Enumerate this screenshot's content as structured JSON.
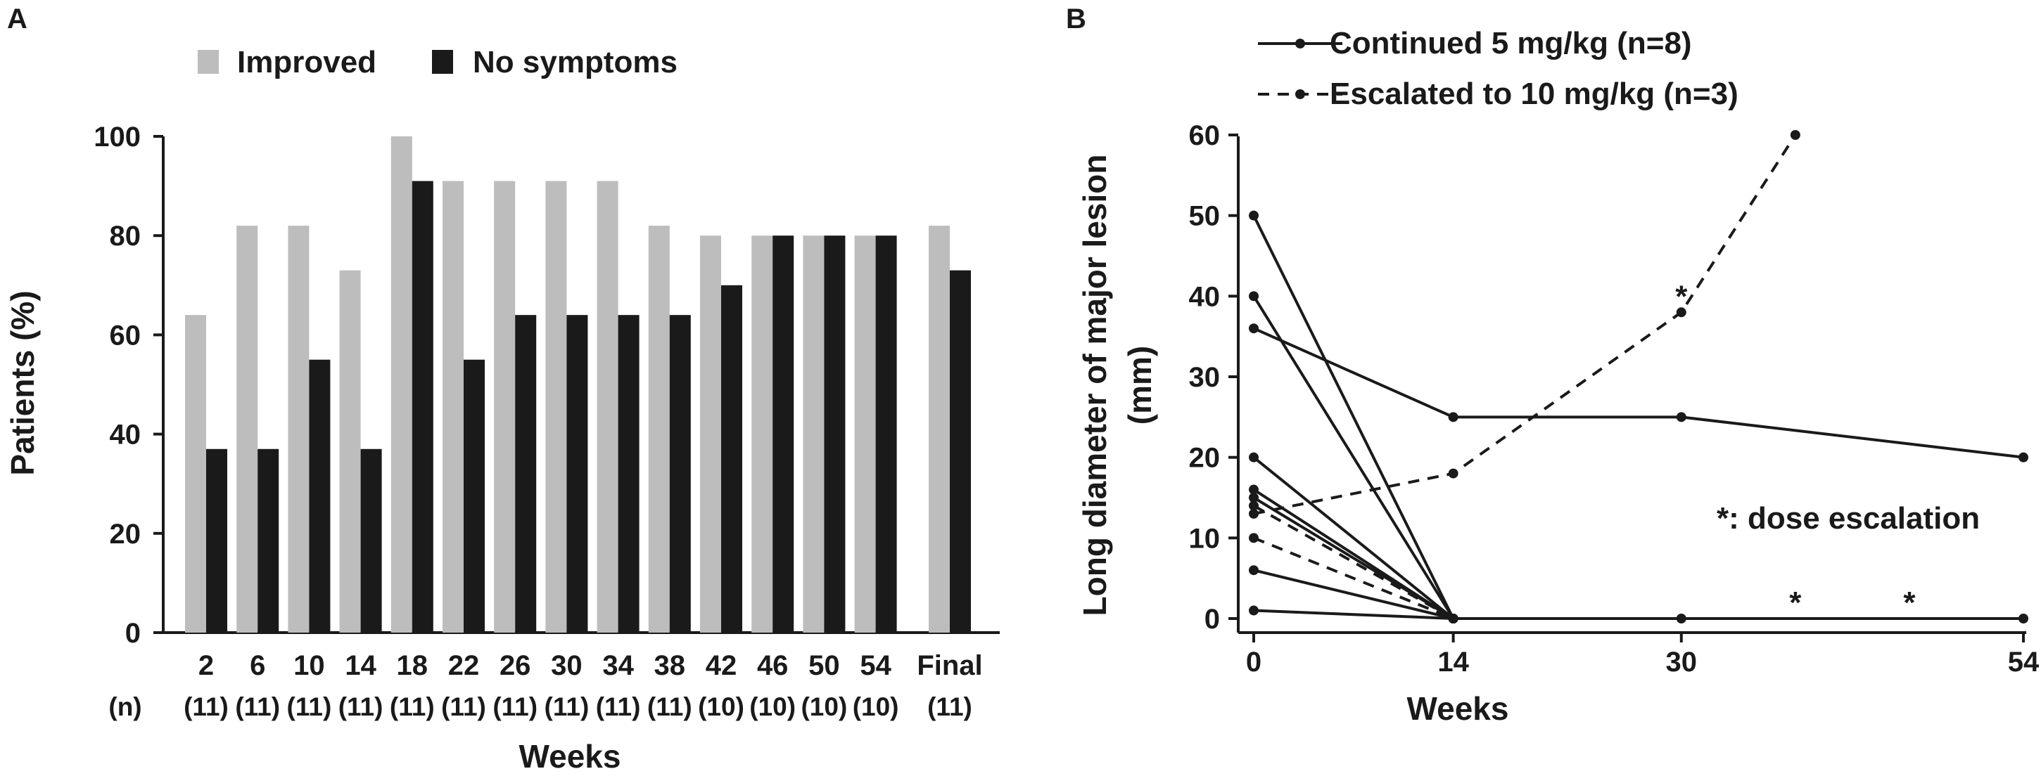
{
  "chart_data": [
    {
      "panel": "A",
      "type": "bar",
      "categories": [
        "2",
        "6",
        "10",
        "14",
        "18",
        "22",
        "26",
        "30",
        "34",
        "38",
        "42",
        "46",
        "50",
        "54",
        "Final"
      ],
      "n_label": "(n)",
      "n_values": [
        "(11)",
        "(11)",
        "(11)",
        "(11)",
        "(11)",
        "(11)",
        "(11)",
        "(11)",
        "(11)",
        "(11)",
        "(10)",
        "(10)",
        "(10)",
        "(10)",
        "(11)"
      ],
      "series": [
        {
          "name": "Improved",
          "color": "#bdbdbd",
          "values": [
            64,
            82,
            82,
            73,
            100,
            91,
            91,
            91,
            91,
            82,
            80,
            80,
            80,
            80,
            82
          ]
        },
        {
          "name": "No symptoms",
          "color": "#1a1a1a",
          "values": [
            37,
            37,
            55,
            37,
            91,
            55,
            64,
            64,
            64,
            64,
            70,
            80,
            80,
            80,
            73
          ]
        }
      ],
      "xlabel": "Weeks",
      "ylabel": "Patients (%)",
      "ylim": [
        0,
        100
      ],
      "yticks": [
        0,
        20,
        40,
        60,
        80,
        100
      ],
      "legend_position": "top",
      "grid": false
    },
    {
      "panel": "B",
      "type": "line",
      "xlabel": "Weeks",
      "ylabel_line1": "Long diameter of major lesion",
      "ylabel_line2": "(mm)",
      "xticks": [
        0,
        14,
        30,
        54
      ],
      "yticks": [
        0,
        10,
        20,
        30,
        40,
        50,
        60
      ],
      "xlim": [
        0,
        54
      ],
      "ylim": [
        0,
        60
      ],
      "legend_position": "top",
      "grid": false,
      "series": [
        {
          "name": "Continued 5 mg/kg (n=8)",
          "style": "solid",
          "show_legend": true,
          "x": [
            0,
            14,
            30,
            54
          ],
          "y": [
            36,
            25,
            25,
            20
          ]
        },
        {
          "style": "solid",
          "x": [
            0,
            14,
            30,
            54
          ],
          "y": [
            50,
            0,
            0,
            0
          ]
        },
        {
          "style": "solid",
          "x": [
            0,
            14
          ],
          "y": [
            40,
            0
          ]
        },
        {
          "style": "solid",
          "x": [
            0,
            14
          ],
          "y": [
            20,
            0
          ]
        },
        {
          "style": "solid",
          "x": [
            0,
            14
          ],
          "y": [
            16,
            0
          ]
        },
        {
          "style": "solid",
          "x": [
            0,
            14
          ],
          "y": [
            15,
            0
          ]
        },
        {
          "style": "solid",
          "x": [
            0,
            14
          ],
          "y": [
            6,
            0
          ]
        },
        {
          "style": "solid",
          "x": [
            0,
            14
          ],
          "y": [
            1,
            0
          ]
        },
        {
          "name": "Escalated to 10 mg/kg (n=3)",
          "style": "dashed",
          "show_legend": true,
          "x": [
            0,
            14,
            30,
            38
          ],
          "y": [
            13,
            18,
            38,
            60
          ]
        },
        {
          "style": "dashed",
          "x": [
            0,
            14
          ],
          "y": [
            14,
            0
          ]
        },
        {
          "style": "dashed",
          "x": [
            0,
            14
          ],
          "y": [
            10,
            0
          ]
        }
      ],
      "escalation_marks": [
        {
          "x": 30,
          "y": 38
        },
        {
          "x": 38,
          "y": 0
        },
        {
          "x": 46,
          "y": 0
        }
      ],
      "escalation_symbol": "*",
      "annotation": "*: dose escalation"
    }
  ]
}
